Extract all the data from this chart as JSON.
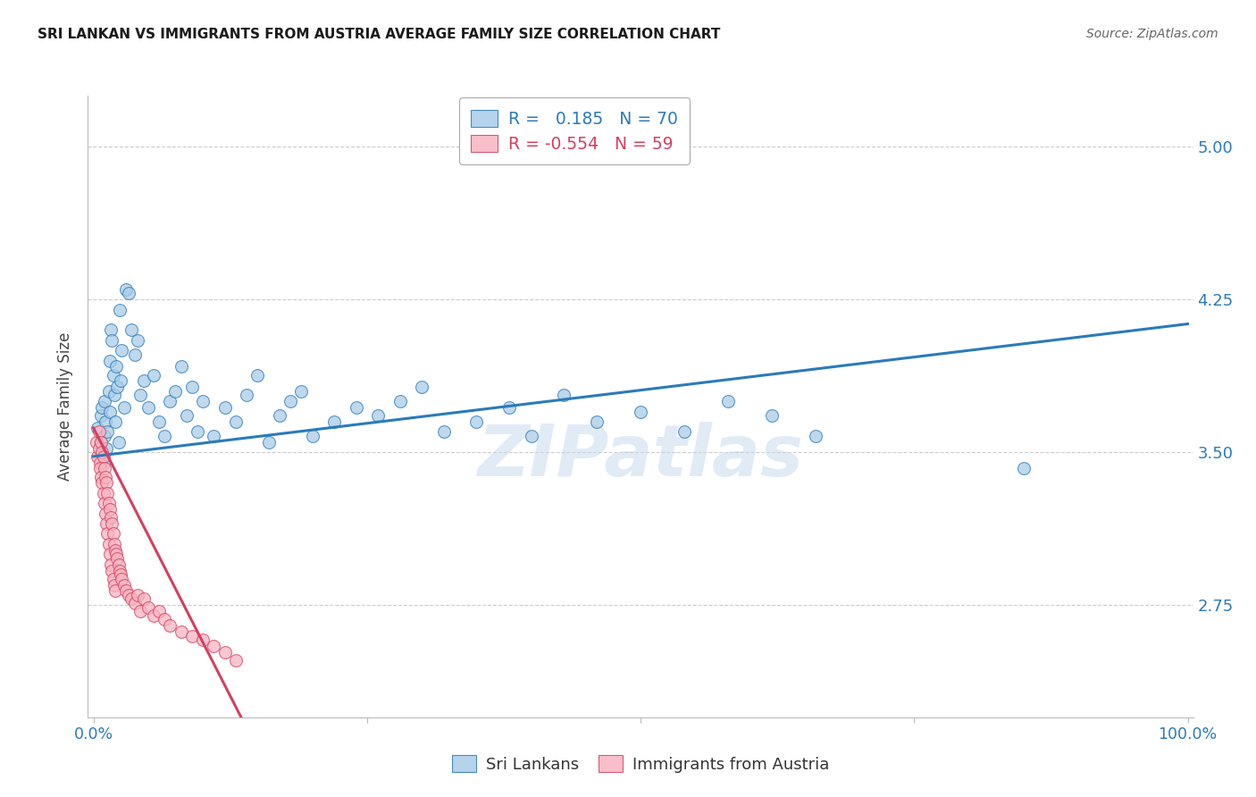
{
  "title": "SRI LANKAN VS IMMIGRANTS FROM AUSTRIA AVERAGE FAMILY SIZE CORRELATION CHART",
  "source": "Source: ZipAtlas.com",
  "ylabel": "Average Family Size",
  "yticks": [
    2.75,
    3.5,
    4.25,
    5.0
  ],
  "ymin": 2.2,
  "ymax": 5.25,
  "xmin": -0.005,
  "xmax": 1.005,
  "blue_R": "0.185",
  "blue_N": "70",
  "pink_R": "-0.554",
  "pink_N": "59",
  "blue_color": "#a8cce8",
  "pink_color": "#f9b4c0",
  "blue_line_color": "#2b7bba",
  "pink_line_color": "#d44060",
  "watermark": "ZIPatlas",
  "blue_scatter_x": [
    0.004,
    0.006,
    0.007,
    0.008,
    0.009,
    0.01,
    0.01,
    0.011,
    0.012,
    0.013,
    0.014,
    0.015,
    0.015,
    0.016,
    0.017,
    0.018,
    0.019,
    0.02,
    0.021,
    0.022,
    0.023,
    0.024,
    0.025,
    0.026,
    0.028,
    0.03,
    0.032,
    0.035,
    0.038,
    0.04,
    0.043,
    0.046,
    0.05,
    0.055,
    0.06,
    0.065,
    0.07,
    0.075,
    0.08,
    0.085,
    0.09,
    0.095,
    0.1,
    0.11,
    0.12,
    0.13,
    0.14,
    0.15,
    0.16,
    0.17,
    0.18,
    0.19,
    0.2,
    0.22,
    0.24,
    0.26,
    0.28,
    0.3,
    0.32,
    0.35,
    0.38,
    0.4,
    0.43,
    0.46,
    0.5,
    0.54,
    0.58,
    0.62,
    0.66,
    0.85
  ],
  "blue_scatter_y": [
    3.62,
    3.55,
    3.68,
    3.72,
    3.45,
    3.58,
    3.75,
    3.65,
    3.52,
    3.6,
    3.8,
    3.95,
    3.7,
    4.1,
    4.05,
    3.88,
    3.78,
    3.65,
    3.92,
    3.82,
    3.55,
    4.2,
    3.85,
    4.0,
    3.72,
    4.3,
    4.28,
    4.1,
    3.98,
    4.05,
    3.78,
    3.85,
    3.72,
    3.88,
    3.65,
    3.58,
    3.75,
    3.8,
    3.92,
    3.68,
    3.82,
    3.6,
    3.75,
    3.58,
    3.72,
    3.65,
    3.78,
    3.88,
    3.55,
    3.68,
    3.75,
    3.8,
    3.58,
    3.65,
    3.72,
    3.68,
    3.75,
    3.82,
    3.6,
    3.65,
    3.72,
    3.58,
    3.78,
    3.65,
    3.7,
    3.6,
    3.75,
    3.68,
    3.58,
    3.42
  ],
  "pink_scatter_x": [
    0.003,
    0.004,
    0.005,
    0.005,
    0.006,
    0.006,
    0.007,
    0.007,
    0.008,
    0.008,
    0.009,
    0.009,
    0.01,
    0.01,
    0.011,
    0.011,
    0.012,
    0.012,
    0.013,
    0.013,
    0.014,
    0.014,
    0.015,
    0.015,
    0.016,
    0.016,
    0.017,
    0.017,
    0.018,
    0.018,
    0.019,
    0.019,
    0.02,
    0.02,
    0.021,
    0.022,
    0.023,
    0.024,
    0.025,
    0.026,
    0.028,
    0.03,
    0.032,
    0.035,
    0.038,
    0.04,
    0.043,
    0.046,
    0.05,
    0.055,
    0.06,
    0.065,
    0.07,
    0.08,
    0.09,
    0.1,
    0.11,
    0.12,
    0.13
  ],
  "pink_scatter_y": [
    3.55,
    3.48,
    3.52,
    3.6,
    3.45,
    3.42,
    3.55,
    3.38,
    3.5,
    3.35,
    3.48,
    3.3,
    3.42,
    3.25,
    3.38,
    3.2,
    3.35,
    3.15,
    3.3,
    3.1,
    3.25,
    3.05,
    3.22,
    3.0,
    3.18,
    2.95,
    3.15,
    2.92,
    3.1,
    2.88,
    3.05,
    2.85,
    3.02,
    2.82,
    3.0,
    2.98,
    2.95,
    2.92,
    2.9,
    2.88,
    2.85,
    2.82,
    2.8,
    2.78,
    2.76,
    2.8,
    2.72,
    2.78,
    2.74,
    2.7,
    2.72,
    2.68,
    2.65,
    2.62,
    2.6,
    2.58,
    2.55,
    2.52,
    2.48
  ],
  "blue_trend_x": [
    0.0,
    1.0
  ],
  "blue_trend_y": [
    3.48,
    4.13
  ],
  "pink_trend_x": [
    0.0,
    0.135
  ],
  "pink_trend_y": [
    3.62,
    2.2
  ],
  "background_color": "#ffffff",
  "grid_color": "#cccccc",
  "title_color": "#1a1a1a",
  "tick_color": "#2b7bba",
  "ylabel_color": "#444444"
}
